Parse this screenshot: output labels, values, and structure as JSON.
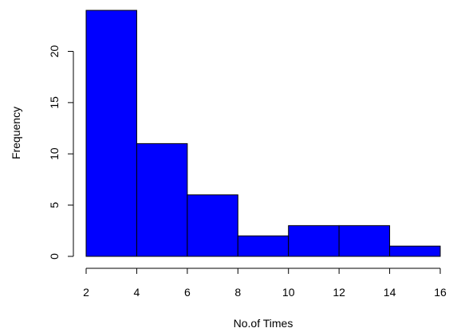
{
  "chart_data": {
    "type": "bar",
    "subtype": "histogram",
    "title": "",
    "xlabel": "No.of Times",
    "ylabel": "Frequency",
    "bins": [
      {
        "start": 2,
        "end": 4,
        "count": 24
      },
      {
        "start": 4,
        "end": 6,
        "count": 11
      },
      {
        "start": 6,
        "end": 8,
        "count": 6
      },
      {
        "start": 8,
        "end": 10,
        "count": 2
      },
      {
        "start": 10,
        "end": 12,
        "count": 3
      },
      {
        "start": 12,
        "end": 14,
        "count": 3
      },
      {
        "start": 14,
        "end": 16,
        "count": 1
      }
    ],
    "xlim": [
      2,
      16
    ],
    "ylim": [
      0,
      24
    ],
    "x_ticks": [
      2,
      4,
      6,
      8,
      10,
      12,
      14,
      16
    ],
    "y_ticks": [
      0,
      5,
      10,
      15,
      20
    ],
    "bar_color": "#0000ff",
    "edge_color": "#000000",
    "grid": false,
    "legend": "none"
  }
}
